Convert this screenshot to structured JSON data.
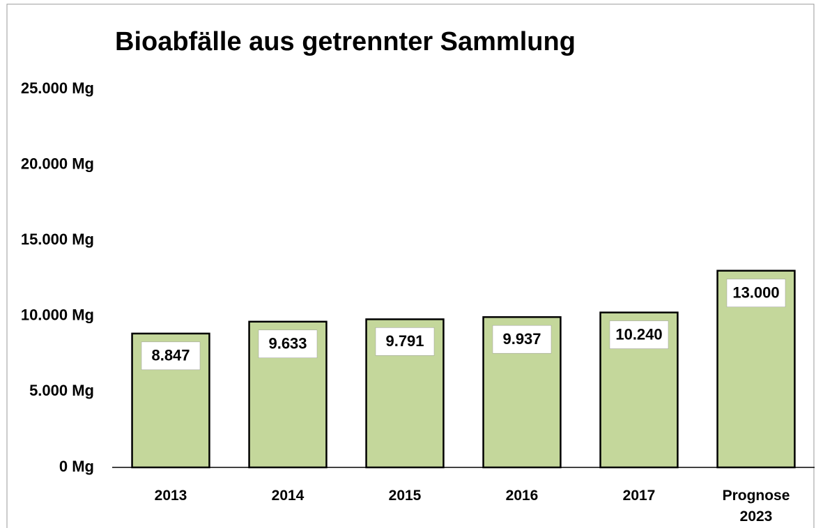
{
  "chart_data": {
    "type": "bar",
    "title": "Bioabfälle aus getrennter Sammlung",
    "categories": [
      "2013",
      "2014",
      "2015",
      "2016",
      "2017",
      "Prognose 2023"
    ],
    "values": [
      8847,
      9633,
      9791,
      9937,
      10240,
      13000
    ],
    "value_labels": [
      "8.847",
      "9.633",
      "9.791",
      "9.937",
      "10.240",
      "13.000"
    ],
    "color": "#c4d79b",
    "ylim": [
      0,
      25000
    ],
    "yticks": [
      {
        "value": 0,
        "label": "0 Mg"
      },
      {
        "value": 5000,
        "label": "5.000 Mg"
      },
      {
        "value": 10000,
        "label": "10.000 Mg"
      },
      {
        "value": 15000,
        "label": "15.000 Mg"
      },
      {
        "value": 20000,
        "label": "20.000 Mg"
      },
      {
        "value": 25000,
        "label": "25.000 Mg"
      }
    ],
    "grid": false
  }
}
